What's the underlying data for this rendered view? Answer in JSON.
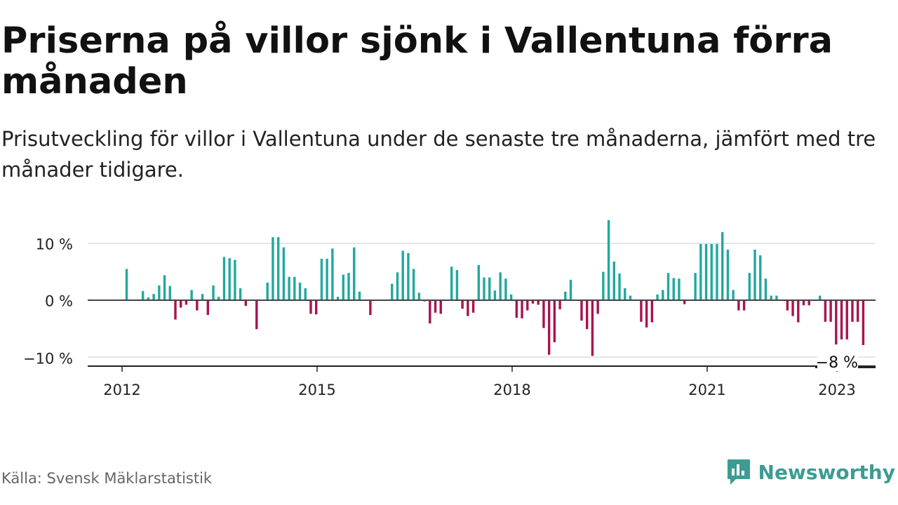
{
  "header": {
    "title": "Priserna på villor sjönk i Vallentuna förra månaden",
    "subtitle": "Prisutveckling för villor i Vallentuna under de senaste tre månaderna, jämfört med tre månader tidigare."
  },
  "footer": {
    "source": "Källa: Svensk Mäklarstatistik",
    "brand": "Newsworthy"
  },
  "colors": {
    "positive": "#21a89f",
    "negative": "#a8134f",
    "grid": "#dddddd",
    "zero_line": "#444444"
  },
  "chart_data": {
    "type": "bar",
    "x_start": "2012-01",
    "x_end": "2023-02",
    "y_unit": "%",
    "ylim": [
      -11.5,
      13.5
    ],
    "y_ticks": [
      -10,
      0,
      10
    ],
    "y_tick_labels": [
      "−10 %",
      "0 %",
      "10 %"
    ],
    "x_tick_labels": [
      "2012",
      "2015",
      "2018",
      "2021",
      "2023"
    ],
    "grid": true,
    "last_value_label": "−8 %",
    "values": [
      5.5,
      0,
      0,
      1.6,
      0.5,
      1.1,
      2.6,
      4.4,
      2.5,
      -3.4,
      -1.3,
      -0.8,
      1.8,
      -1.8,
      1.1,
      -2.6,
      2.6,
      0.6,
      7.6,
      7.4,
      7.1,
      2.1,
      -1.0,
      0,
      -5.1,
      0,
      3.1,
      11.1,
      11.1,
      9.3,
      4.1,
      4.1,
      3.1,
      2.1,
      -2.4,
      -2.5,
      7.3,
      7.3,
      9.1,
      0.6,
      4.5,
      4.8,
      9.3,
      1.5,
      0,
      -2.6,
      0,
      0,
      0,
      2.9,
      4.9,
      8.7,
      8.3,
      5.5,
      1.3,
      -0.2,
      -4.1,
      -2.2,
      -2.4,
      0,
      5.9,
      5.3,
      -1.5,
      -2.8,
      -2.2,
      6.2,
      4.0,
      4.0,
      1.7,
      4.9,
      3.8,
      1.0,
      -3.1,
      -3.2,
      -1.8,
      -0.6,
      -0.8,
      -4.9,
      -9.6,
      -7.4,
      -1.6,
      1.5,
      3.6,
      0,
      -3.6,
      -5.1,
      -9.8,
      -2.4,
      5.0,
      14.1,
      6.8,
      4.7,
      2.1,
      0.8,
      0,
      -3.8,
      -4.8,
      -3.9,
      1.0,
      1.8,
      4.8,
      3.9,
      3.8,
      -0.7,
      0,
      4.8,
      9.9,
      9.9,
      9.9,
      9.9,
      12.0,
      8.9,
      1.8,
      -1.8,
      -1.8,
      4.8,
      8.9,
      7.9,
      3.8,
      0.8,
      0.8,
      0,
      -1.8,
      -2.8,
      -3.9,
      -0.9,
      -0.9,
      0,
      0.8,
      -3.8,
      -3.8,
      -7.8,
      -6.9,
      -6.9,
      -3.8,
      -3.8,
      -7.9
    ]
  }
}
